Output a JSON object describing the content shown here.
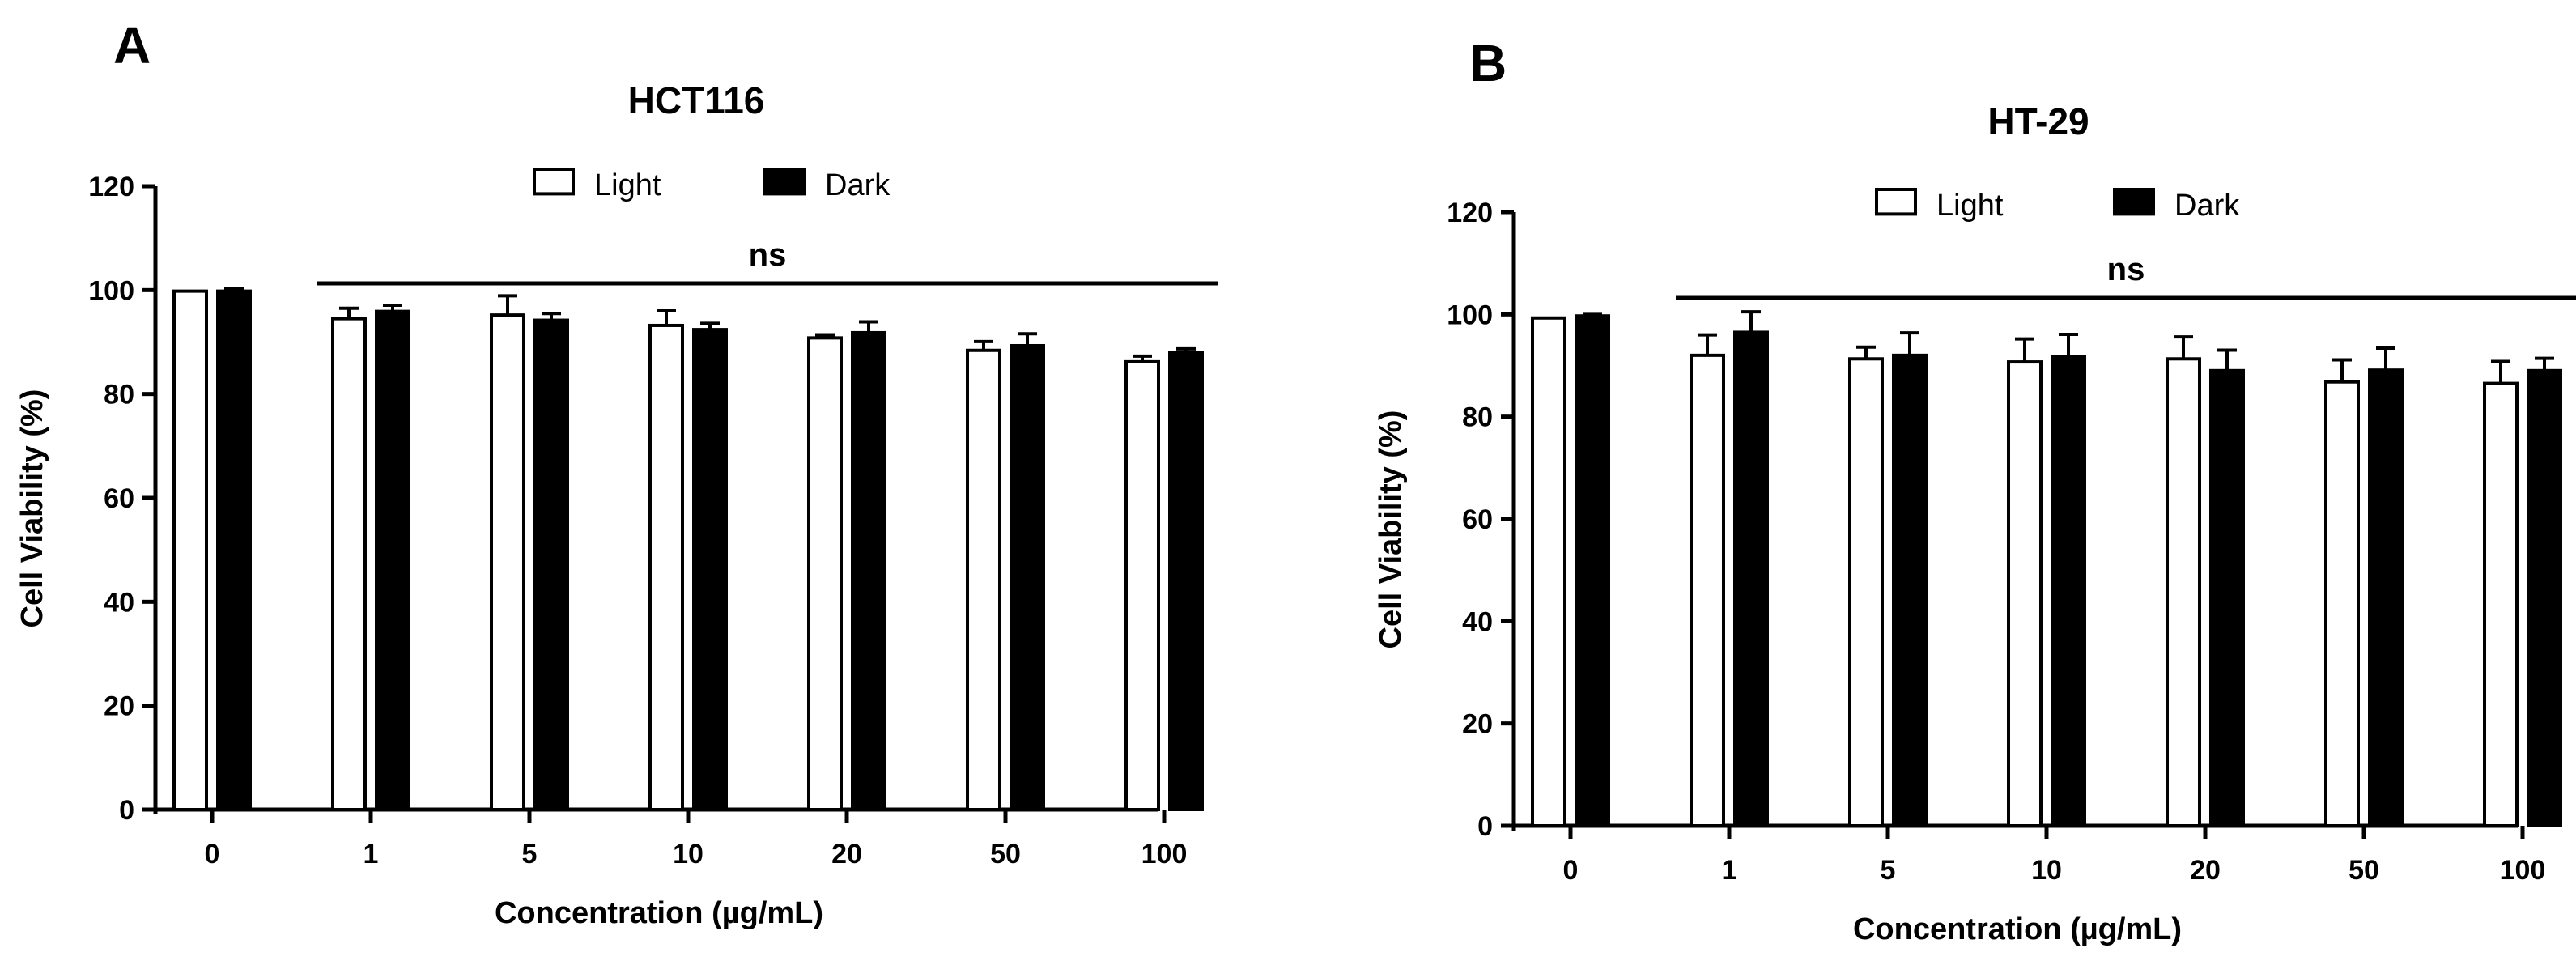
{
  "panels": [
    {
      "letter": "A",
      "chart_data": {
        "type": "bar",
        "title": "HCT116",
        "xlabel": "Concentration (µg/mL)",
        "ylabel": "Cell Viability (%)",
        "categories": [
          "0",
          "1",
          "5",
          "10",
          "20",
          "50",
          "100"
        ],
        "ylim": [
          0,
          120
        ],
        "yticks": [
          0,
          20,
          40,
          60,
          80,
          100,
          120
        ],
        "series": [
          {
            "name": "Light",
            "fill": "#ffffff",
            "values": [
              99.8,
              94.5,
              95.2,
              93.2,
              90.8,
              88.4,
              86.2
            ],
            "errors": [
              0,
              2.0,
              3.7,
              2.8,
              0.6,
              1.7,
              1.1
            ]
          },
          {
            "name": "Dark",
            "fill": "#000000",
            "values": [
              99.8,
              95.9,
              94.2,
              92.4,
              91.8,
              89.3,
              88.0
            ],
            "errors": [
              0.4,
              1.2,
              1.3,
              1.2,
              2.1,
              2.3,
              0.7
            ]
          }
        ],
        "significance": {
          "label": "ns",
          "from_category": "1",
          "to_category": "100"
        },
        "legend_position": "top-center"
      }
    },
    {
      "letter": "B",
      "chart_data": {
        "type": "bar",
        "title": "HT-29",
        "xlabel": "Concentration (µg/mL)",
        "ylabel": "Cell Viability (%)",
        "categories": [
          "0",
          "1",
          "5",
          "10",
          "20",
          "50",
          "100"
        ],
        "ylim": [
          0,
          120
        ],
        "yticks": [
          0,
          20,
          40,
          60,
          80,
          100,
          120
        ],
        "series": [
          {
            "name": "Light",
            "fill": "#ffffff",
            "values": [
              99.3,
              92.0,
              91.3,
              90.7,
              91.3,
              86.8,
              86.5
            ],
            "errors": [
              0,
              4.0,
              2.3,
              4.5,
              4.3,
              4.3,
              4.3
            ]
          },
          {
            "name": "Dark",
            "fill": "#000000",
            "values": [
              99.7,
              96.5,
              92.0,
              91.8,
              89.0,
              89.1,
              89.0
            ],
            "errors": [
              0.3,
              4.0,
              4.4,
              4.3,
              4.0,
              4.3,
              2.4
            ]
          }
        ],
        "significance": {
          "label": "ns",
          "from_category": "1",
          "to_category": "100"
        },
        "legend_position": "top-center"
      }
    }
  ]
}
